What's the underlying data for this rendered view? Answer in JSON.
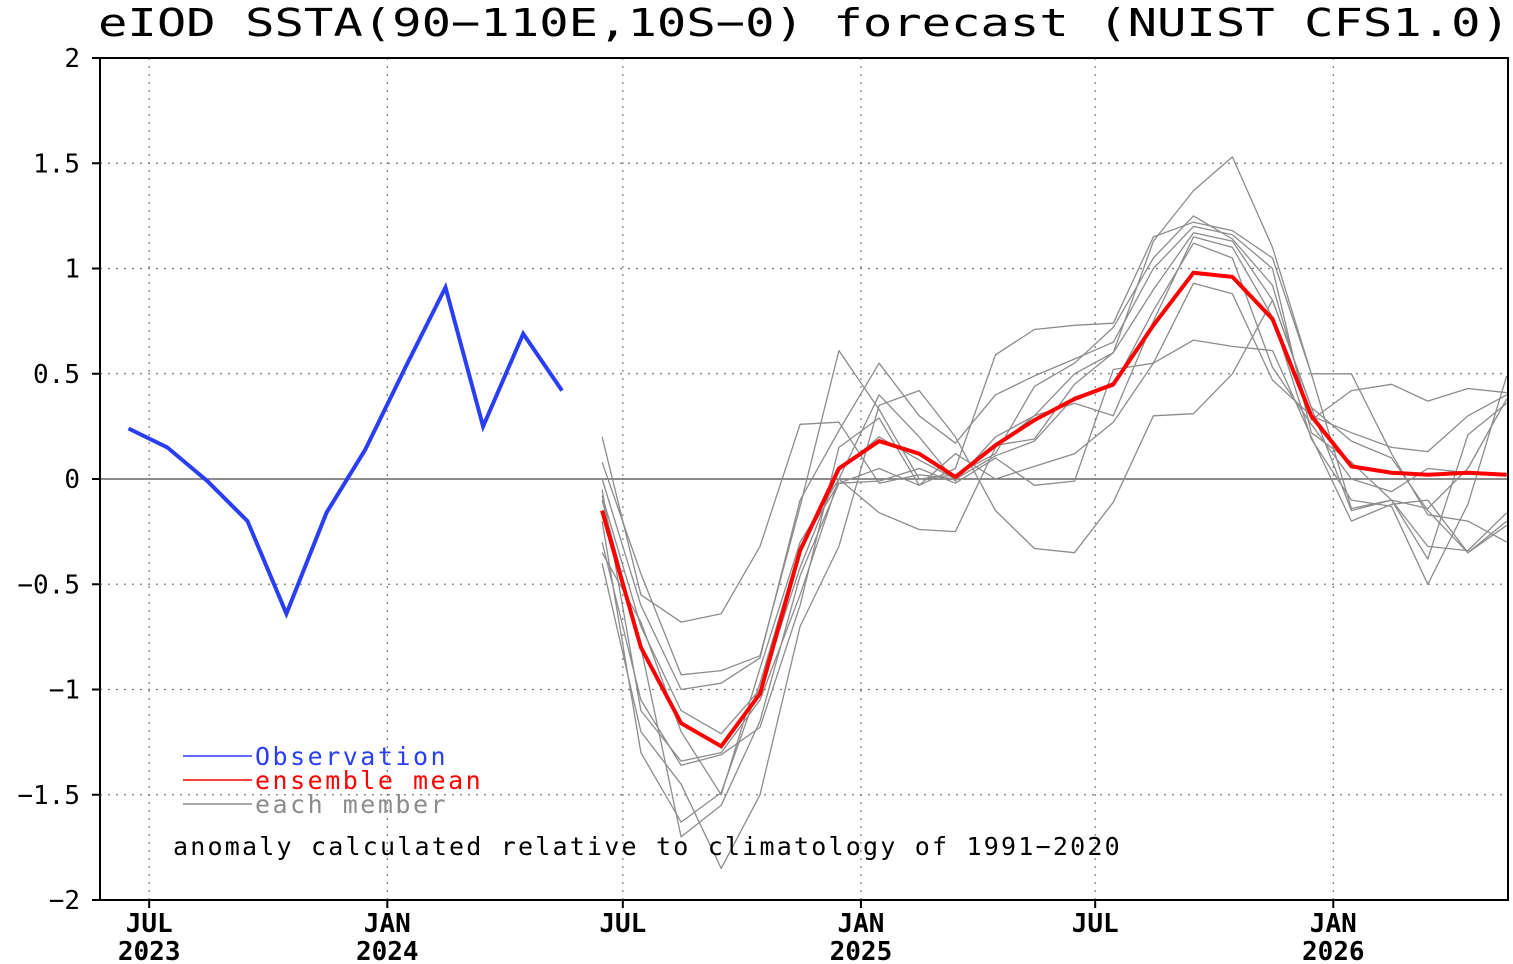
{
  "chart_data": {
    "type": "line",
    "title": "eIOD SSTA(90−110E,10S−0) forecast (NUIST CFS1.0)",
    "ylim": [
      -2,
      2
    ],
    "yticks": [
      2,
      1.5,
      1,
      0.5,
      0,
      -0.5,
      -1,
      -1.5,
      -2
    ],
    "ytick_labels": [
      "2",
      "1.5",
      "1",
      "0.5",
      "0",
      "−0.5",
      "−1",
      "−1.5",
      "−2"
    ],
    "xlim": [
      "2023-05-24",
      "2026-05-16"
    ],
    "xticks": [
      {
        "date": "2023-07",
        "line1": "JUL",
        "line2": "2023"
      },
      {
        "date": "2024-01",
        "line1": "JAN",
        "line2": "2024"
      },
      {
        "date": "2024-07",
        "line1": "JUL",
        "line2": ""
      },
      {
        "date": "2025-01",
        "line1": "JAN",
        "line2": "2025"
      },
      {
        "date": "2025-07",
        "line1": "JUL",
        "line2": ""
      },
      {
        "date": "2026-01",
        "line1": "JAN",
        "line2": "2026"
      }
    ],
    "grid": true,
    "zero_line": true,
    "legend": {
      "placement": "bottom-left",
      "entries": [
        {
          "label": "Observation",
          "color": "#2a3ff5"
        },
        {
          "label": "ensemble mean",
          "color": "#ff0000"
        },
        {
          "label": "each member",
          "color": "#8c8c8c"
        }
      ]
    },
    "annotation": "anomaly calculated relative to climatology of 1991−2020",
    "series": [
      {
        "name": "Observation",
        "color": "#2a3ff5",
        "x": [
          "2023-06",
          "2023-07",
          "2023-08",
          "2023-09",
          "2023-10",
          "2023-11",
          "2023-12",
          "2024-01",
          "2024-02",
          "2024-03",
          "2024-04",
          "2024-05"
        ],
        "values": [
          0.24,
          0.15,
          -0.01,
          -0.2,
          -0.64,
          -0.16,
          0.14,
          0.53,
          0.91,
          0.25,
          0.69,
          0.42
        ]
      },
      {
        "name": "ensemble mean",
        "color": "#ff0000",
        "x": [
          "2024-06",
          "2024-07",
          "2024-08",
          "2024-09",
          "2024-10",
          "2024-11",
          "2024-12",
          "2025-01",
          "2025-02",
          "2025-03",
          "2025-04",
          "2025-05",
          "2025-06",
          "2025-07",
          "2025-08",
          "2025-09",
          "2025-10",
          "2025-11",
          "2025-12",
          "2026-01",
          "2026-02",
          "2026-03",
          "2026-04",
          "2026-05"
        ],
        "values": [
          -0.15,
          -0.8,
          -1.16,
          -1.27,
          -1.02,
          -0.34,
          0.05,
          0.18,
          0.12,
          0.01,
          0.16,
          0.28,
          0.38,
          0.45,
          0.73,
          0.98,
          0.96,
          0.76,
          0.3,
          0.06,
          0.03,
          0.02,
          0.03,
          0.02
        ]
      }
    ],
    "members": {
      "color": "#8c8c8c",
      "x": [
        "2024-06",
        "2024-07",
        "2024-08",
        "2024-09",
        "2024-10",
        "2024-11",
        "2024-12",
        "2025-01",
        "2025-02",
        "2025-03",
        "2025-04",
        "2025-05",
        "2025-06",
        "2025-07",
        "2025-08",
        "2025-09",
        "2025-10",
        "2025-11",
        "2025-12",
        "2026-01",
        "2026-02",
        "2026-03",
        "2026-04",
        "2026-05"
      ],
      "values": [
        [
          0.2,
          -0.55,
          -0.68,
          -0.64,
          -0.32,
          0.26,
          0.27,
          -0.02,
          0.02,
          0.0,
          0.16,
          0.19,
          0.45,
          0.6,
          1.13,
          1.37,
          1.53,
          1.1,
          0.5,
          0.5,
          0.12,
          -0.17,
          -0.2,
          -0.3
        ],
        [
          0.08,
          -0.45,
          -0.93,
          -0.91,
          -0.84,
          -0.13,
          0.61,
          0.33,
          0.0,
          0.02,
          0.12,
          0.44,
          0.55,
          0.72,
          1.05,
          1.25,
          1.14,
          0.92,
          0.28,
          0.42,
          0.45,
          0.37,
          0.43,
          0.41
        ],
        [
          0.0,
          -0.6,
          -1.0,
          -0.97,
          -0.85,
          -0.1,
          0.23,
          0.55,
          0.3,
          0.17,
          0.4,
          0.49,
          0.57,
          0.65,
          1.0,
          1.2,
          1.16,
          1.0,
          0.22,
          0.08,
          -0.1,
          -0.38,
          0.21,
          0.36
        ],
        [
          -0.05,
          -1.1,
          -1.34,
          -1.3,
          -1.05,
          -0.55,
          0.0,
          0.4,
          0.2,
          -0.01,
          0.2,
          0.3,
          0.36,
          0.3,
          0.75,
          1.15,
          1.1,
          0.77,
          0.19,
          -0.1,
          -0.13,
          -0.5,
          -0.12,
          0.49
        ],
        [
          -0.3,
          -1.05,
          -1.36,
          -1.31,
          -1.18,
          -0.6,
          0.15,
          0.29,
          -0.03,
          0.12,
          0.0,
          0.06,
          0.12,
          0.27,
          0.55,
          0.93,
          0.88,
          0.47,
          0.3,
          0.22,
          0.15,
          0.13,
          0.3,
          0.4
        ],
        [
          -0.35,
          -0.68,
          -1.2,
          -1.5,
          -0.9,
          -0.3,
          0.0,
          -0.16,
          -0.24,
          -0.25,
          0.15,
          0.3,
          0.5,
          0.6,
          0.9,
          1.17,
          1.13,
          0.85,
          0.34,
          0.18,
          0.1,
          -0.15,
          -0.35,
          -0.2
        ],
        [
          -0.4,
          -1.2,
          -1.45,
          -1.85,
          -1.5,
          -0.7,
          -0.32,
          0.35,
          0.42,
          0.2,
          -0.15,
          -0.33,
          -0.35,
          -0.11,
          0.3,
          0.31,
          0.5,
          0.85,
          0.34,
          -0.15,
          -0.1,
          -0.32,
          -0.34,
          -0.16
        ],
        [
          -0.1,
          -0.8,
          -1.7,
          -1.55,
          -1.15,
          -0.46,
          -0.02,
          -0.01,
          0.05,
          -0.02,
          0.1,
          -0.03,
          -0.01,
          0.52,
          0.55,
          0.66,
          0.63,
          0.61,
          0.2,
          -0.2,
          -0.12,
          -0.1,
          -0.35,
          -0.22
        ],
        [
          -0.2,
          -1.3,
          -1.63,
          -1.49,
          -0.97,
          -0.32,
          -0.02,
          0.05,
          -0.03,
          0.05,
          0.59,
          0.71,
          0.73,
          0.74,
          1.15,
          1.22,
          1.18,
          1.05,
          0.5,
          -0.14,
          -0.1,
          -0.14,
          0.05,
          0.38
        ],
        [
          -0.08,
          -0.7,
          -1.1,
          -1.21,
          -1.0,
          -0.42,
          0.04,
          0.2,
          0.09,
          0.0,
          0.11,
          0.18,
          0.39,
          0.44,
          0.8,
          1.12,
          1.05,
          0.53,
          0.26,
          0.0,
          -0.06,
          0.05,
          0.03,
          0.02
        ]
      ]
    }
  }
}
